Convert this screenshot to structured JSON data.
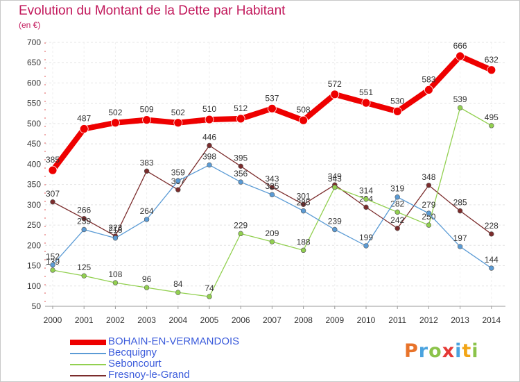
{
  "chart_data": {
    "type": "line",
    "title": "Evolution du Montant de la Dette par Habitant",
    "subtitle": "(en €)",
    "xlabel": "",
    "ylabel": "",
    "x": [
      "2000",
      "2001",
      "2002",
      "2003",
      "2004",
      "2005",
      "2006",
      "2007",
      "2008",
      "2009",
      "2010",
      "2011",
      "2012",
      "2013",
      "2014"
    ],
    "ylim": [
      50,
      700
    ],
    "yticks": [
      50,
      100,
      150,
      200,
      250,
      300,
      350,
      400,
      450,
      500,
      550,
      600,
      650,
      700
    ],
    "grid": true,
    "legend_position": "bottom-left",
    "series": [
      {
        "name": "BOHAIN-EN-VERMANDOIS",
        "color": "#ee0000",
        "values": [
          385,
          487,
          502,
          509,
          502,
          510,
          512,
          537,
          508,
          572,
          551,
          530,
          583,
          666,
          632
        ]
      },
      {
        "name": "Becquigny",
        "color": "#5b9bd5",
        "values": [
          152,
          239,
          218,
          264,
          359,
          398,
          356,
          325,
          285,
          239,
          199,
          319,
          279,
          197,
          144
        ]
      },
      {
        "name": "Seboncourt",
        "color": "#92d050",
        "values": [
          139,
          125,
          108,
          96,
          84,
          74,
          229,
          209,
          188,
          343,
          314,
          282,
          250,
          539,
          495
        ]
      },
      {
        "name": "Fresnoy-le-Grand",
        "color": "#7b2c2c",
        "values": [
          307,
          266,
          223,
          383,
          337,
          446,
          395,
          343,
          301,
          349,
          294,
          242,
          348,
          285,
          228
        ]
      }
    ]
  },
  "branding": {
    "logo": {
      "letters": [
        {
          "ch": "P",
          "color": "#e8732a"
        },
        {
          "ch": "r",
          "color": "#4aa3df"
        },
        {
          "ch": "o",
          "color": "#8bc34a"
        },
        {
          "ch": "x",
          "color": "#e53935"
        },
        {
          "ch": "i",
          "color": "#4aa3df"
        },
        {
          "ch": "t",
          "color": "#f2a516"
        },
        {
          "ch": "i",
          "color": "#8bc34a"
        }
      ]
    }
  }
}
